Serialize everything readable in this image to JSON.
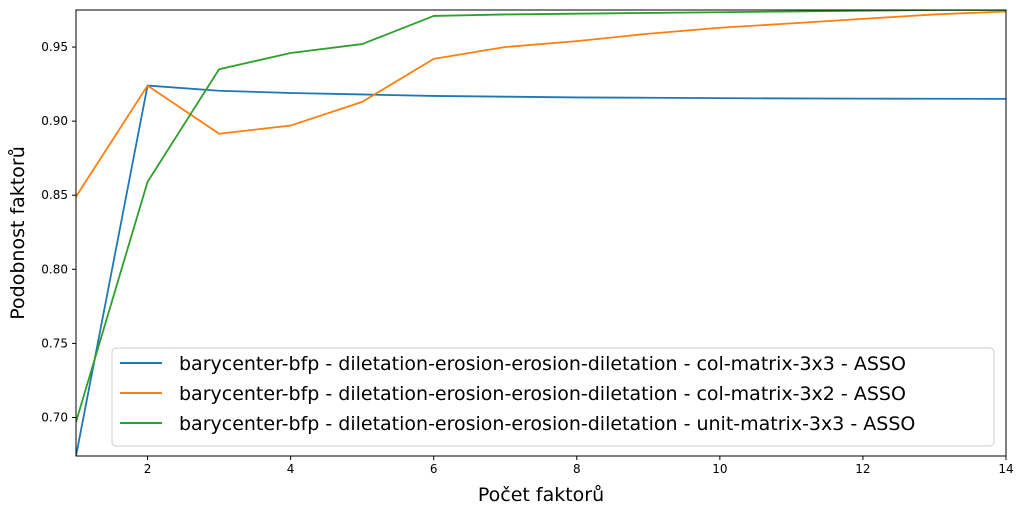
{
  "chart_data": {
    "type": "line",
    "xlabel": "Počet faktorů",
    "ylabel": "Podobnost faktorů",
    "xlim": [
      1,
      14
    ],
    "ylim": [
      0.674,
      0.975
    ],
    "xticks": [
      2,
      4,
      6,
      8,
      10,
      12,
      14
    ],
    "yticks": [
      0.7,
      0.75,
      0.8,
      0.85,
      0.9,
      0.95
    ],
    "grid": false,
    "legend_position": "lower-right",
    "x": [
      1,
      2,
      3,
      4,
      5,
      6,
      7,
      8,
      9,
      10,
      11,
      12,
      13,
      14
    ],
    "series": [
      {
        "name": "barycenter-bfp - diletation-erosion-erosion-diletation - col-matrix-3x3 - ASSO",
        "color": "#1f77b4",
        "values": [
          0.674,
          0.924,
          0.9205,
          0.919,
          0.918,
          0.917,
          0.9165,
          0.916,
          0.9158,
          0.9155,
          0.9153,
          0.9152,
          0.9151,
          0.915
        ]
      },
      {
        "name": "barycenter-bfp - diletation-erosion-erosion-diletation - col-matrix-3x2 - ASSO",
        "color": "#ff7f0e",
        "values": [
          0.849,
          0.924,
          0.8915,
          0.897,
          0.913,
          0.942,
          0.95,
          0.954,
          0.959,
          0.963,
          0.966,
          0.969,
          0.972,
          0.974
        ]
      },
      {
        "name": "barycenter-bfp - diletation-erosion-erosion-diletation - unit-matrix-3x3 - ASSO",
        "color": "#2ca02c",
        "values": [
          0.697,
          0.859,
          0.935,
          0.946,
          0.952,
          0.971,
          0.972,
          0.9725,
          0.973,
          0.9735,
          0.974,
          0.9745,
          0.975,
          0.975
        ]
      }
    ]
  }
}
